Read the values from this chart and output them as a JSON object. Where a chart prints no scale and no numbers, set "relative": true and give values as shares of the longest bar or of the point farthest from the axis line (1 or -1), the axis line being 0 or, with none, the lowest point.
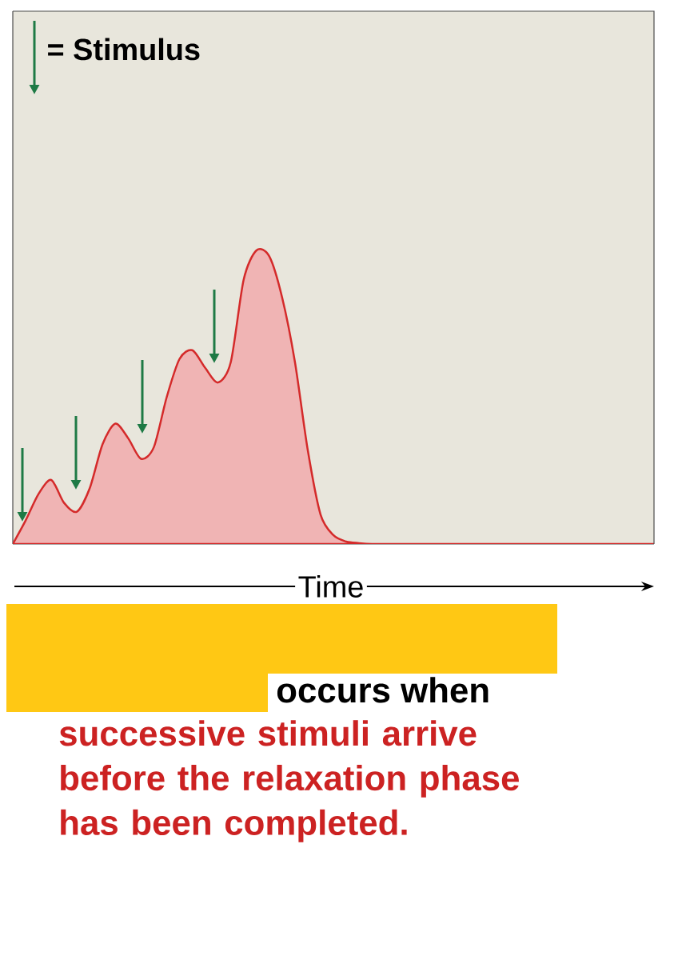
{
  "chart_data": {
    "type": "area",
    "relative": true,
    "xlabel": "Time",
    "color": "#d42a2a",
    "categories": [
      null,
      null,
      null,
      null,
      null,
      null,
      null,
      null,
      null,
      null,
      null,
      null,
      null,
      null,
      null,
      null,
      null,
      null,
      null,
      null,
      null,
      null,
      null,
      null,
      null,
      null,
      null,
      null,
      null,
      null,
      null,
      null,
      null,
      null,
      null,
      null,
      null,
      null,
      null,
      null,
      null,
      null,
      null,
      null,
      null,
      null,
      null,
      null,
      null,
      null,
      null
    ],
    "values": [
      0,
      0.08,
      0.17,
      0.218,
      0.14,
      0.11,
      0.19,
      0.34,
      0.41,
      0.36,
      0.29,
      0.33,
      0.5,
      0.63,
      0.66,
      0.6,
      0.55,
      0.62,
      0.9,
      1,
      0.98,
      0.84,
      0.62,
      0.32,
      0.1,
      0.03,
      0.008,
      0.003,
      0,
      0,
      0,
      0,
      0,
      0,
      0,
      0,
      0,
      0,
      0,
      0,
      0,
      0,
      0,
      0,
      0,
      0,
      0,
      0,
      0,
      0,
      0
    ],
    "annotations": [
      "= Stimulus",
      "occurs when",
      "successive stimuli arrive before the relaxation phase has been completed."
    ]
  }
}
